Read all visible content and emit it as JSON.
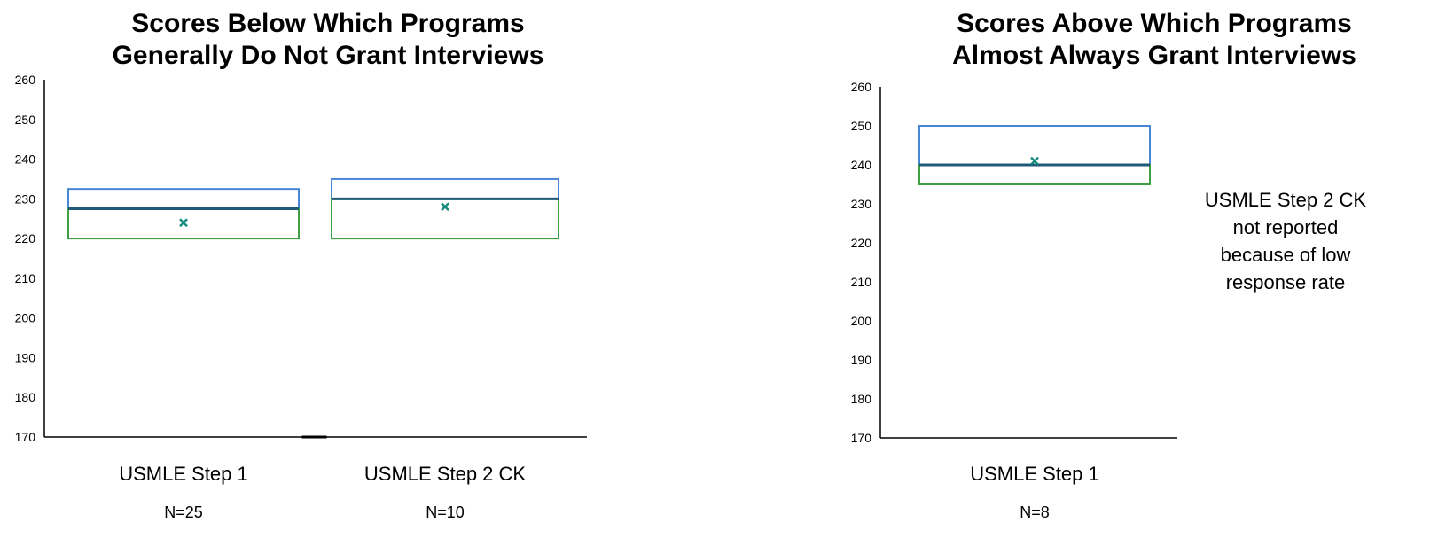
{
  "chart_data": [
    {
      "type": "boxplot",
      "title_lines": [
        "Scores Below Which Programs",
        "Generally Do Not Grant Interviews"
      ],
      "ylim": [
        170,
        260
      ],
      "y_ticks": [
        170,
        180,
        190,
        200,
        210,
        220,
        230,
        240,
        250,
        260
      ],
      "grid": false,
      "categories": [
        "USMLE Step 1",
        "USMLE Step 2 CK"
      ],
      "n_labels": [
        "N=25",
        "N=10"
      ],
      "boxes": [
        {
          "q1": 220,
          "median": 227.5,
          "q3": 232.5,
          "mean": 224
        },
        {
          "q1": 220,
          "median": 230,
          "q3": 235,
          "mean": 228
        }
      ]
    },
    {
      "type": "boxplot",
      "title_lines": [
        "Scores Above Which Programs",
        "Almost Always Grant Interviews"
      ],
      "ylim": [
        170,
        260
      ],
      "y_ticks": [
        170,
        180,
        190,
        200,
        210,
        220,
        230,
        240,
        250,
        260
      ],
      "grid": false,
      "categories": [
        "USMLE Step 1"
      ],
      "n_labels": [
        "N=8"
      ],
      "boxes": [
        {
          "q1": 235,
          "median": 240,
          "q3": 250,
          "mean": 241
        }
      ],
      "note_lines": [
        "USMLE Step 2 CK",
        "not reported",
        "because of low",
        "response rate"
      ]
    }
  ],
  "colors": {
    "upper_box": "#4a86d6",
    "lower_box": "#3fa043",
    "median": "#1f5a78",
    "mean_marker": "#138a7d",
    "axis": "#000000"
  }
}
